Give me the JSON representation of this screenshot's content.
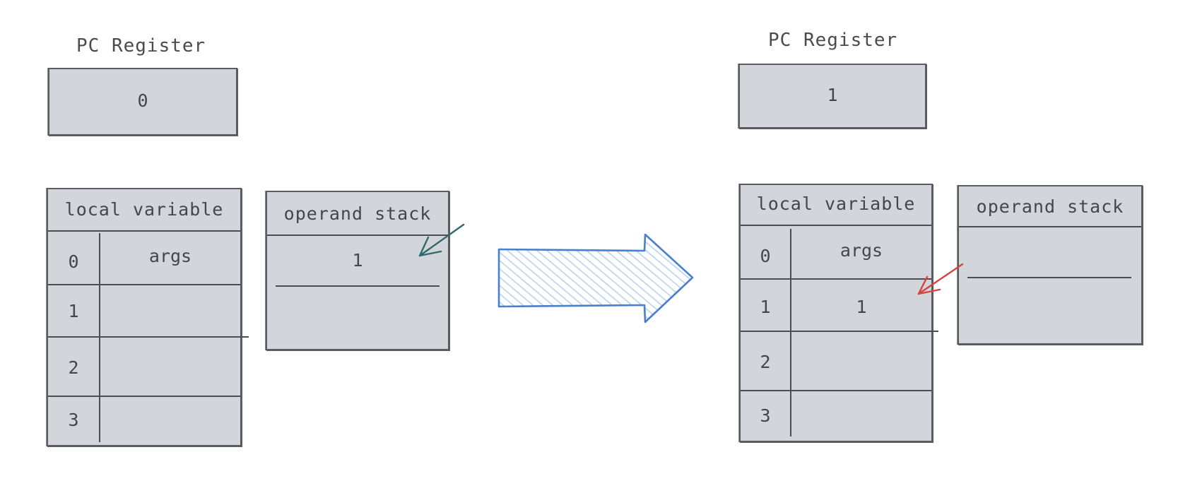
{
  "before": {
    "pc_register": {
      "label": "PC Register",
      "value": "0"
    },
    "local_variable": {
      "header": "local variable",
      "rows": [
        {
          "index": "0",
          "value": "args"
        },
        {
          "index": "1",
          "value": ""
        },
        {
          "index": "2",
          "value": ""
        },
        {
          "index": "3",
          "value": ""
        }
      ]
    },
    "operand_stack": {
      "header": "operand stack",
      "slots": [
        "1",
        ""
      ]
    },
    "pointer_color": "#2e6b6a"
  },
  "transition_arrow": {
    "color": "#4a7fd0",
    "fill": "#b9d2f2"
  },
  "after": {
    "pc_register": {
      "label": "PC Register",
      "value": "1"
    },
    "local_variable": {
      "header": "local variable",
      "rows": [
        {
          "index": "0",
          "value": "args"
        },
        {
          "index": "1",
          "value": "1"
        },
        {
          "index": "2",
          "value": ""
        },
        {
          "index": "3",
          "value": ""
        }
      ]
    },
    "operand_stack": {
      "header": "operand stack",
      "slots": [
        "",
        ""
      ]
    },
    "pointer_color": "#d9433f"
  }
}
